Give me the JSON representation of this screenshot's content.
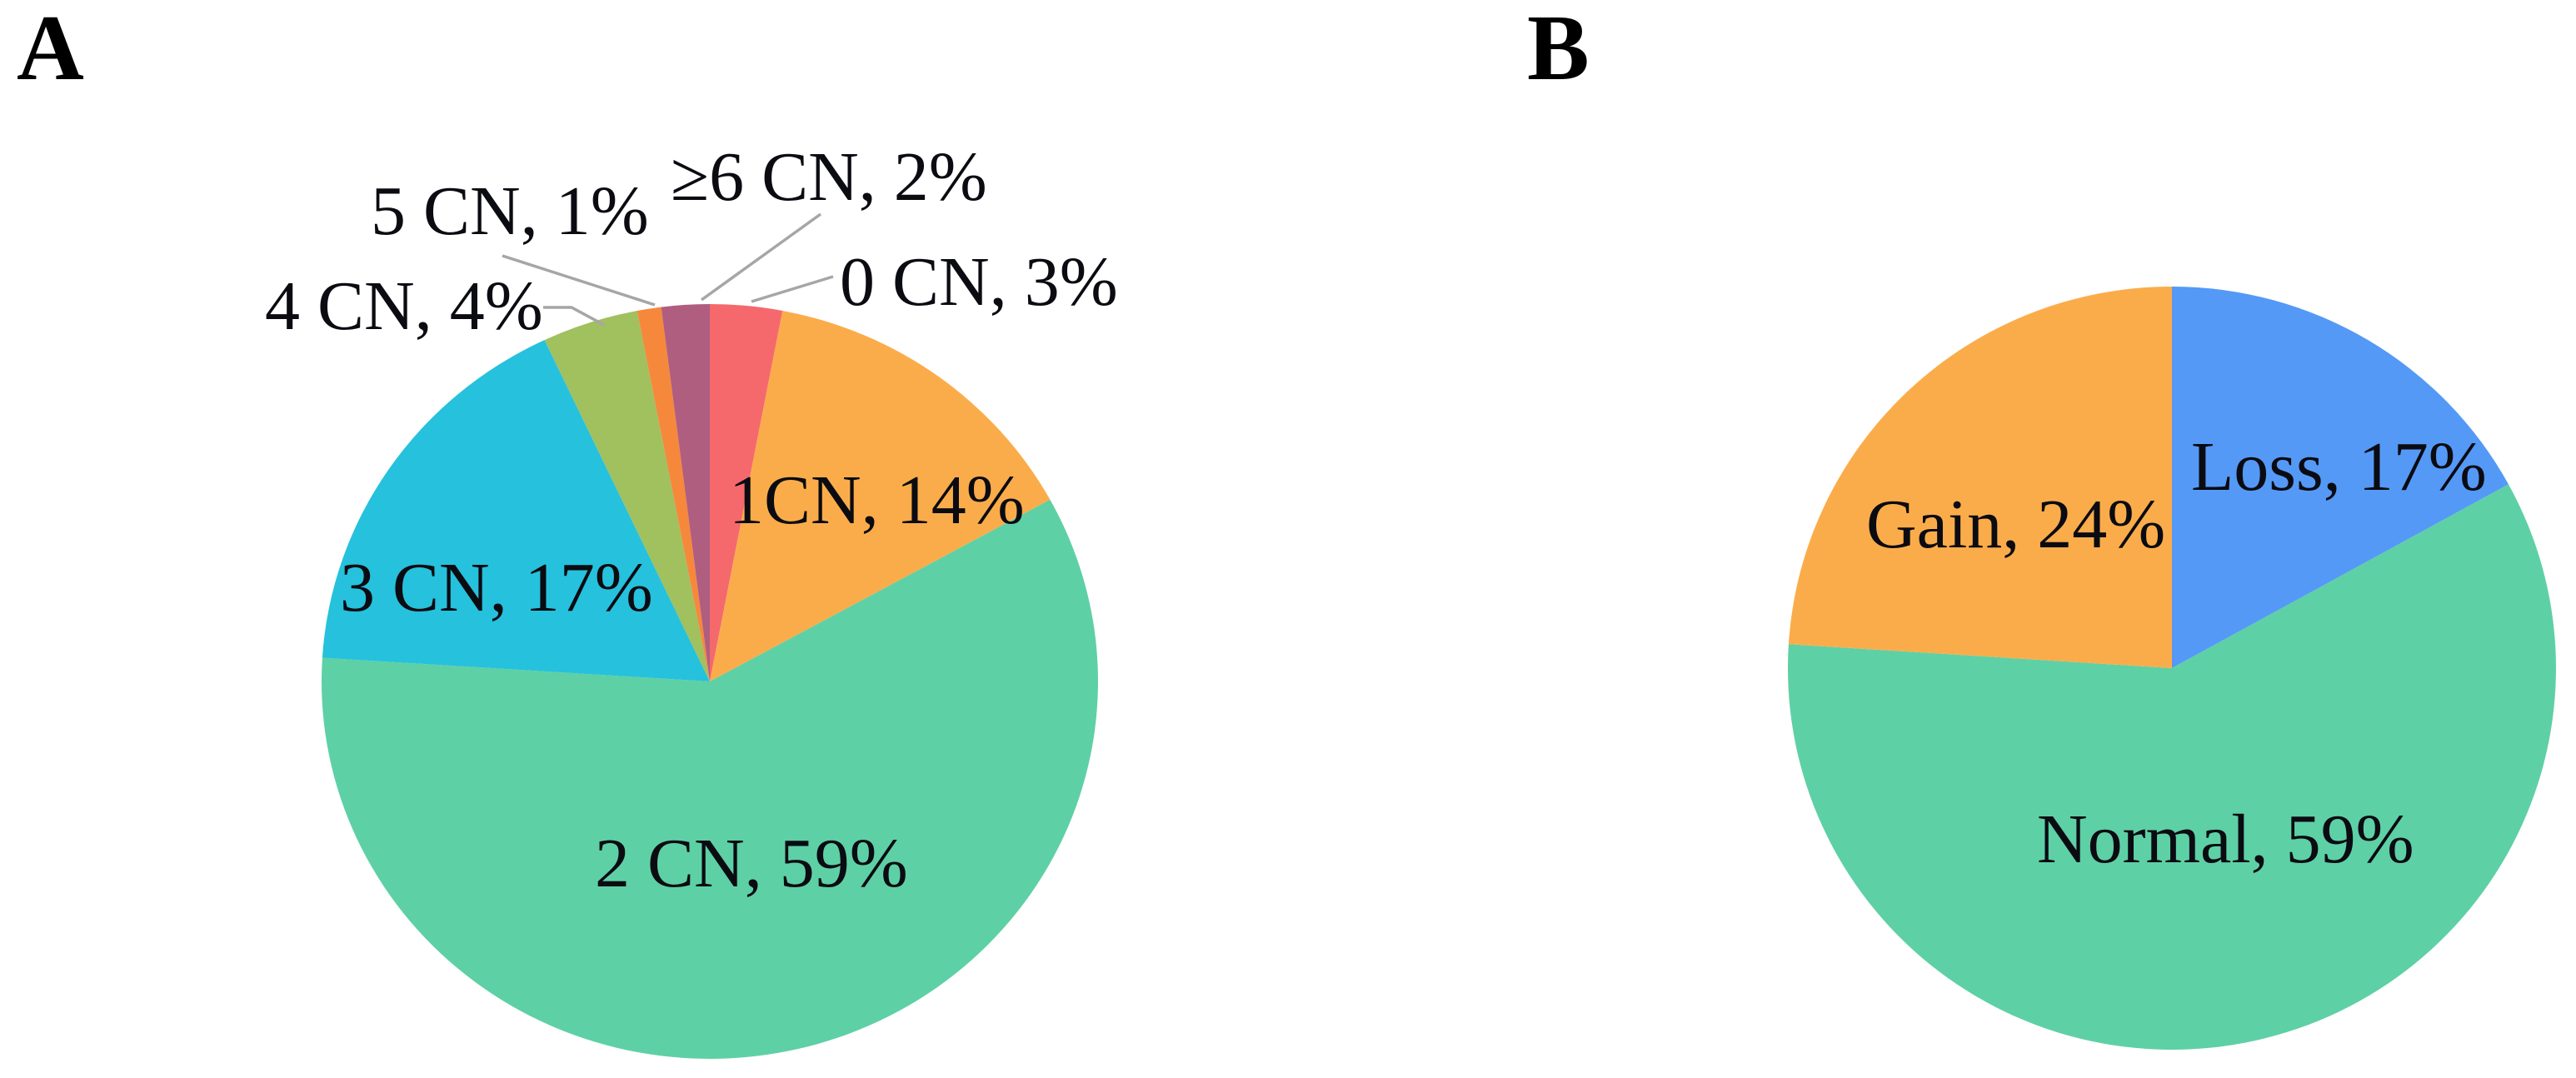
{
  "figure": {
    "background": "#ffffff",
    "panels": [
      {
        "id": "A",
        "label": "A"
      },
      {
        "id": "B",
        "label": "B"
      }
    ]
  },
  "chart_data": [
    {
      "type": "pie",
      "panel": "A",
      "title": "",
      "start_angle_deg": 0,
      "direction": "clockwise",
      "units": "percent",
      "legend_position": "none",
      "labels_style": "category-comma-percent, placed on or beside slices with gray leader lines for small slices",
      "slices": [
        {
          "name": "0 CN",
          "value": 3,
          "label": "0 CN, 3%",
          "color": "#f5696d"
        },
        {
          "name": "1 CN",
          "value": 14,
          "label": "1CN, 14%",
          "color": "#fbac4a"
        },
        {
          "name": "2 CN",
          "value": 59,
          "label": "2 CN, 59%",
          "color": "#5ed0a5"
        },
        {
          "name": "3 CN",
          "value": 17,
          "label": "3 CN, 17%",
          "color": "#26c1dc"
        },
        {
          "name": "4 CN",
          "value": 4,
          "label": "4 CN, 4%",
          "color": "#a1c05e"
        },
        {
          "name": "5 CN",
          "value": 1,
          "label": "5 CN, 1%",
          "color": "#f6883c"
        },
        {
          "name": "≥6 CN",
          "value": 2,
          "label": "≥6 CN, 2%",
          "color": "#b05e7f"
        }
      ]
    },
    {
      "type": "pie",
      "panel": "B",
      "title": "",
      "start_angle_deg": 0,
      "direction": "clockwise",
      "units": "percent",
      "legend_position": "none",
      "labels_style": "category-comma-percent, placed inside slices",
      "slices": [
        {
          "name": "Loss",
          "value": 17,
          "label": "Loss, 17%",
          "color": "#5599f6"
        },
        {
          "name": "Normal",
          "value": 59,
          "label": "Normal, 59%",
          "color": "#5ed0a5"
        },
        {
          "name": "Gain",
          "value": 24,
          "label": "Gain, 24%",
          "color": "#fbac4a"
        }
      ]
    }
  ]
}
